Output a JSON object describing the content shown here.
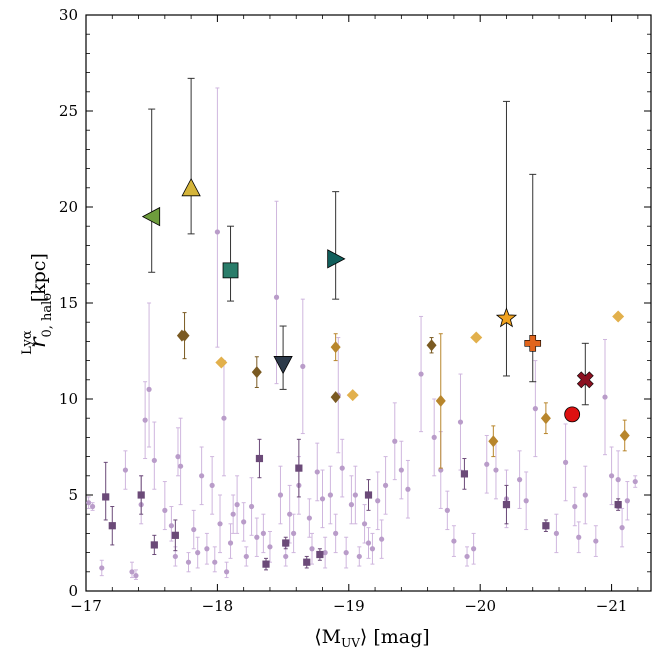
{
  "chart_data": {
    "type": "scatter",
    "xlabel": "⟨M_UV⟩ [mag]",
    "xlabel_parts": {
      "open": "⟨M",
      "sub": "UV",
      "close": "⟩ [mag]"
    },
    "ylabel": "r_{0,halo}^{Lyα} [kpc]",
    "ylabel_parts": {
      "r": "r",
      "sub": "0, halo",
      "sup": "Lyα",
      "unit": " [kpc]"
    },
    "xlim": [
      -17,
      -21.3
    ],
    "ylim": [
      0,
      30
    ],
    "xticks": [
      -17,
      -18,
      -19,
      -20,
      -21
    ],
    "xtick_labels": [
      "−17",
      "−18",
      "−19",
      "−20",
      "−21"
    ],
    "yticks": [
      0,
      5,
      10,
      15,
      20,
      25,
      30
    ],
    "ytick_labels": [
      "0",
      "5",
      "10",
      "15",
      "20",
      "25",
      "30"
    ],
    "grid": false,
    "series": [
      {
        "name": "individual-halos",
        "marker": "circle-small",
        "color": "#b99cc9",
        "points": [
          {
            "x": -17.02,
            "y": 4.6,
            "lo": 0.3,
            "hi": 0.3
          },
          {
            "x": -17.05,
            "y": 4.4,
            "lo": 0.2,
            "hi": 0.2
          },
          {
            "x": -17.12,
            "y": 1.2,
            "lo": 0.4,
            "hi": 0.4
          },
          {
            "x": -17.3,
            "y": 6.3,
            "lo": 1.0,
            "hi": 1.0
          },
          {
            "x": -17.35,
            "y": 1.0,
            "lo": 0.3,
            "hi": 0.5
          },
          {
            "x": -17.38,
            "y": 0.8,
            "lo": 0.2,
            "hi": 0.3
          },
          {
            "x": -17.42,
            "y": 4.5,
            "lo": 1.0,
            "hi": 1.5
          },
          {
            "x": -17.45,
            "y": 8.9,
            "lo": 2.0,
            "hi": 2.0
          },
          {
            "x": -17.48,
            "y": 10.5,
            "lo": 3.0,
            "hi": 4.5
          },
          {
            "x": -17.52,
            "y": 6.8,
            "lo": 1.5,
            "hi": 2.0
          },
          {
            "x": -17.6,
            "y": 4.2,
            "lo": 1.0,
            "hi": 1.5
          },
          {
            "x": -17.65,
            "y": 3.4,
            "lo": 0.8,
            "hi": 1.0
          },
          {
            "x": -17.68,
            "y": 1.8,
            "lo": 0.5,
            "hi": 0.5
          },
          {
            "x": -17.7,
            "y": 7.0,
            "lo": 1.0,
            "hi": 1.5
          },
          {
            "x": -17.72,
            "y": 6.5,
            "lo": 2.0,
            "hi": 2.5
          },
          {
            "x": -17.78,
            "y": 1.5,
            "lo": 0.5,
            "hi": 0.5
          },
          {
            "x": -17.82,
            "y": 3.2,
            "lo": 1.0,
            "hi": 1.0
          },
          {
            "x": -17.85,
            "y": 2.0,
            "lo": 0.8,
            "hi": 0.8
          },
          {
            "x": -17.88,
            "y": 6.0,
            "lo": 1.5,
            "hi": 1.5
          },
          {
            "x": -17.92,
            "y": 2.2,
            "lo": 0.8,
            "hi": 0.8
          },
          {
            "x": -17.96,
            "y": 5.5,
            "lo": 1.5,
            "hi": 1.5
          },
          {
            "x": -17.98,
            "y": 1.5,
            "lo": 0.5,
            "hi": 0.8
          },
          {
            "x": -18.0,
            "y": 18.7,
            "lo": 6.0,
            "hi": 7.5
          },
          {
            "x": -18.02,
            "y": 3.5,
            "lo": 1.5,
            "hi": 1.5
          },
          {
            "x": -18.05,
            "y": 9.0,
            "lo": 3.0,
            "hi": 3.0
          },
          {
            "x": -18.07,
            "y": 1.0,
            "lo": 0.3,
            "hi": 0.5
          },
          {
            "x": -18.1,
            "y": 2.5,
            "lo": 0.8,
            "hi": 1.0
          },
          {
            "x": -18.12,
            "y": 4.0,
            "lo": 1.0,
            "hi": 1.0
          },
          {
            "x": -18.15,
            "y": 4.5,
            "lo": 1.5,
            "hi": 1.5
          },
          {
            "x": -18.2,
            "y": 3.6,
            "lo": 1.0,
            "hi": 1.0
          },
          {
            "x": -18.22,
            "y": 1.8,
            "lo": 0.5,
            "hi": 0.5
          },
          {
            "x": -18.26,
            "y": 4.4,
            "lo": 1.5,
            "hi": 1.5
          },
          {
            "x": -18.3,
            "y": 2.8,
            "lo": 1.0,
            "hi": 1.0
          },
          {
            "x": -18.35,
            "y": 3.0,
            "lo": 1.0,
            "hi": 1.0
          },
          {
            "x": -18.4,
            "y": 2.3,
            "lo": 0.8,
            "hi": 0.8
          },
          {
            "x": -18.45,
            "y": 15.3,
            "lo": 4.5,
            "hi": 5.0
          },
          {
            "x": -18.48,
            "y": 5.0,
            "lo": 1.5,
            "hi": 1.5
          },
          {
            "x": -18.52,
            "y": 1.8,
            "lo": 0.5,
            "hi": 0.5
          },
          {
            "x": -18.55,
            "y": 4.0,
            "lo": 1.5,
            "hi": 1.5
          },
          {
            "x": -18.58,
            "y": 3.0,
            "lo": 1.0,
            "hi": 1.0
          },
          {
            "x": -18.62,
            "y": 5.5,
            "lo": 1.5,
            "hi": 1.5
          },
          {
            "x": -18.65,
            "y": 11.7,
            "lo": 3.5,
            "hi": 3.5
          },
          {
            "x": -18.7,
            "y": 3.8,
            "lo": 1.0,
            "hi": 1.0
          },
          {
            "x": -18.72,
            "y": 2.2,
            "lo": 0.8,
            "hi": 0.8
          },
          {
            "x": -18.76,
            "y": 6.2,
            "lo": 1.5,
            "hi": 1.5
          },
          {
            "x": -18.8,
            "y": 4.8,
            "lo": 1.5,
            "hi": 1.5
          },
          {
            "x": -18.82,
            "y": 2.0,
            "lo": 0.8,
            "hi": 0.8
          },
          {
            "x": -18.86,
            "y": 5.0,
            "lo": 1.5,
            "hi": 1.5
          },
          {
            "x": -18.9,
            "y": 3.0,
            "lo": 1.0,
            "hi": 1.0
          },
          {
            "x": -18.92,
            "y": 10.2,
            "lo": 3.0,
            "hi": 3.0
          },
          {
            "x": -18.95,
            "y": 6.4,
            "lo": 1.5,
            "hi": 1.5
          },
          {
            "x": -18.98,
            "y": 2.0,
            "lo": 0.8,
            "hi": 0.8
          },
          {
            "x": -19.02,
            "y": 4.5,
            "lo": 1.0,
            "hi": 1.5
          },
          {
            "x": -19.05,
            "y": 5.0,
            "lo": 1.5,
            "hi": 1.5
          },
          {
            "x": -19.08,
            "y": 1.8,
            "lo": 0.5,
            "hi": 0.5
          },
          {
            "x": -19.12,
            "y": 3.5,
            "lo": 1.0,
            "hi": 1.0
          },
          {
            "x": -19.15,
            "y": 2.5,
            "lo": 0.8,
            "hi": 0.8
          },
          {
            "x": -19.18,
            "y": 2.2,
            "lo": 0.8,
            "hi": 0.8
          },
          {
            "x": -19.22,
            "y": 4.7,
            "lo": 1.5,
            "hi": 1.5
          },
          {
            "x": -19.25,
            "y": 2.7,
            "lo": 1.0,
            "hi": 1.0
          },
          {
            "x": -19.28,
            "y": 5.5,
            "lo": 1.5,
            "hi": 1.5
          },
          {
            "x": -19.35,
            "y": 7.8,
            "lo": 2.0,
            "hi": 2.0
          },
          {
            "x": -19.4,
            "y": 6.3,
            "lo": 1.5,
            "hi": 1.5
          },
          {
            "x": -19.45,
            "y": 5.3,
            "lo": 1.5,
            "hi": 1.5
          },
          {
            "x": -19.55,
            "y": 11.3,
            "lo": 3.0,
            "hi": 3.0
          },
          {
            "x": -19.65,
            "y": 8.0,
            "lo": 2.0,
            "hi": 2.0
          },
          {
            "x": -19.7,
            "y": 6.3,
            "lo": 2.0,
            "hi": 2.0
          },
          {
            "x": -19.75,
            "y": 4.2,
            "lo": 1.0,
            "hi": 1.0
          },
          {
            "x": -19.8,
            "y": 2.6,
            "lo": 0.8,
            "hi": 0.8
          },
          {
            "x": -19.85,
            "y": 8.8,
            "lo": 2.5,
            "hi": 2.5
          },
          {
            "x": -19.9,
            "y": 1.8,
            "lo": 0.5,
            "hi": 0.5
          },
          {
            "x": -19.95,
            "y": 2.2,
            "lo": 0.8,
            "hi": 0.8
          },
          {
            "x": -20.05,
            "y": 6.6,
            "lo": 1.5,
            "hi": 1.5
          },
          {
            "x": -20.12,
            "y": 6.3,
            "lo": 1.5,
            "hi": 1.5
          },
          {
            "x": -20.2,
            "y": 4.8,
            "lo": 1.5,
            "hi": 1.5
          },
          {
            "x": -20.3,
            "y": 5.8,
            "lo": 1.5,
            "hi": 1.5
          },
          {
            "x": -20.35,
            "y": 4.7,
            "lo": 1.5,
            "hi": 1.5
          },
          {
            "x": -20.42,
            "y": 9.5,
            "lo": 2.5,
            "hi": 2.5
          },
          {
            "x": -20.58,
            "y": 3.0,
            "lo": 1.0,
            "hi": 1.0
          },
          {
            "x": -20.65,
            "y": 6.7,
            "lo": 2.0,
            "hi": 2.0
          },
          {
            "x": -20.72,
            "y": 4.4,
            "lo": 1.0,
            "hi": 1.0
          },
          {
            "x": -20.75,
            "y": 2.8,
            "lo": 0.8,
            "hi": 0.8
          },
          {
            "x": -20.8,
            "y": 5.0,
            "lo": 1.5,
            "hi": 1.5
          },
          {
            "x": -20.88,
            "y": 2.6,
            "lo": 0.8,
            "hi": 0.8
          },
          {
            "x": -20.95,
            "y": 10.1,
            "lo": 3.0,
            "hi": 3.0
          },
          {
            "x": -21.0,
            "y": 6.0,
            "lo": 1.5,
            "hi": 1.5
          },
          {
            "x": -21.05,
            "y": 5.8,
            "lo": 1.5,
            "hi": 1.5
          },
          {
            "x": -21.08,
            "y": 3.3,
            "lo": 1.0,
            "hi": 1.0
          },
          {
            "x": -21.12,
            "y": 4.7,
            "lo": 1.0,
            "hi": 1.0
          },
          {
            "x": -21.18,
            "y": 5.7,
            "lo": 0.3,
            "hi": 0.3
          }
        ]
      },
      {
        "name": "stacked-bins",
        "marker": "square-small",
        "color": "#6b4a78",
        "points": [
          {
            "x": -17.15,
            "y": 4.9,
            "lo": 1.2,
            "hi": 1.8
          },
          {
            "x": -17.2,
            "y": 3.4,
            "lo": 1.0,
            "hi": 1.0
          },
          {
            "x": -17.42,
            "y": 5.0,
            "lo": 1.0,
            "hi": 1.0
          },
          {
            "x": -17.52,
            "y": 2.4,
            "lo": 0.5,
            "hi": 0.5
          },
          {
            "x": -17.68,
            "y": 2.9,
            "lo": 0.8,
            "hi": 0.8
          },
          {
            "x": -18.32,
            "y": 6.9,
            "lo": 1.0,
            "hi": 1.0
          },
          {
            "x": -18.37,
            "y": 1.4,
            "lo": 0.3,
            "hi": 0.3
          },
          {
            "x": -18.52,
            "y": 2.5,
            "lo": 0.3,
            "hi": 0.3
          },
          {
            "x": -18.62,
            "y": 6.4,
            "lo": 1.5,
            "hi": 1.5
          },
          {
            "x": -18.68,
            "y": 1.5,
            "lo": 0.3,
            "hi": 0.3
          },
          {
            "x": -18.78,
            "y": 1.9,
            "lo": 0.3,
            "hi": 0.3
          },
          {
            "x": -19.15,
            "y": 5.0,
            "lo": 0.8,
            "hi": 0.8
          },
          {
            "x": -19.88,
            "y": 6.1,
            "lo": 0.8,
            "hi": 0.8
          },
          {
            "x": -20.2,
            "y": 4.5,
            "lo": 1.0,
            "hi": 1.0
          },
          {
            "x": -20.5,
            "y": 3.4,
            "lo": 0.3,
            "hi": 0.3
          },
          {
            "x": -21.05,
            "y": 4.5,
            "lo": 0.3,
            "hi": 0.3
          }
        ]
      },
      {
        "name": "diamond-dark",
        "marker": "diamond-thin",
        "color": "#7a5a22",
        "points": [
          {
            "x": -17.73,
            "y": 13.3,
            "lo": 0.0,
            "hi": 0.0
          },
          {
            "x": -17.75,
            "y": 13.3,
            "lo": 1.2,
            "hi": 1.2
          },
          {
            "x": -18.3,
            "y": 11.4,
            "lo": 0.8,
            "hi": 0.8
          },
          {
            "x": -18.9,
            "y": 10.1,
            "lo": 0.0,
            "hi": 0.0
          },
          {
            "x": -19.63,
            "y": 12.8,
            "lo": 0.4,
            "hi": 0.4
          }
        ]
      },
      {
        "name": "diamond-medium",
        "marker": "diamond-thin",
        "color": "#b8862c",
        "points": [
          {
            "x": -18.9,
            "y": 12.7,
            "lo": 0.7,
            "hi": 0.7
          },
          {
            "x": -19.7,
            "y": 9.9,
            "lo": 3.5,
            "hi": 3.5
          },
          {
            "x": -20.1,
            "y": 7.8,
            "lo": 0.8,
            "hi": 0.8
          },
          {
            "x": -20.5,
            "y": 9.0,
            "lo": 0.8,
            "hi": 0.8
          },
          {
            "x": -21.1,
            "y": 8.1,
            "lo": 0.8,
            "hi": 0.8
          }
        ]
      },
      {
        "name": "diamond-light",
        "marker": "diamond",
        "color": "#e2b04c",
        "points": [
          {
            "x": -18.03,
            "y": 11.9,
            "lo": 0,
            "hi": 0
          },
          {
            "x": -19.03,
            "y": 10.2,
            "lo": 0,
            "hi": 0
          },
          {
            "x": -19.97,
            "y": 13.2,
            "lo": 0,
            "hi": 0
          },
          {
            "x": -21.05,
            "y": 14.3,
            "lo": 0,
            "hi": 0
          }
        ]
      },
      {
        "name": "left-triangle",
        "marker": "triangle-left",
        "color": "#6e9c3c",
        "points": [
          {
            "x": -17.5,
            "y": 19.5,
            "lo": 2.9,
            "hi": 5.6
          }
        ]
      },
      {
        "name": "up-triangle",
        "marker": "triangle-up",
        "color": "#d4b43a",
        "points": [
          {
            "x": -17.8,
            "y": 21.0,
            "lo": 2.4,
            "hi": 5.7
          }
        ]
      },
      {
        "name": "big-square",
        "marker": "square",
        "color": "#2a7d6a",
        "points": [
          {
            "x": -18.1,
            "y": 16.7,
            "lo": 1.6,
            "hi": 2.3
          }
        ]
      },
      {
        "name": "down-triangle",
        "marker": "triangle-down",
        "color": "#2c3a4a",
        "points": [
          {
            "x": -18.5,
            "y": 11.8,
            "lo": 1.3,
            "hi": 2.0
          }
        ]
      },
      {
        "name": "right-triangle",
        "marker": "triangle-right",
        "color": "#115f5c",
        "points": [
          {
            "x": -18.9,
            "y": 17.3,
            "lo": 2.1,
            "hi": 3.5
          }
        ]
      },
      {
        "name": "star",
        "marker": "star",
        "color": "#f0a21f",
        "points": [
          {
            "x": -20.2,
            "y": 14.2,
            "lo": 3.0,
            "hi": 11.3
          }
        ]
      },
      {
        "name": "plus",
        "marker": "plus",
        "color": "#e0641c",
        "points": [
          {
            "x": -20.4,
            "y": 12.9,
            "lo": 2.0,
            "hi": 8.8
          }
        ]
      },
      {
        "name": "cross",
        "marker": "cross",
        "color": "#8a1020",
        "points": [
          {
            "x": -20.8,
            "y": 11.0,
            "lo": 1.3,
            "hi": 1.9
          }
        ]
      },
      {
        "name": "big-circle",
        "marker": "circle",
        "color": "#dd1111",
        "points": [
          {
            "x": -20.7,
            "y": 9.2,
            "lo": 0,
            "hi": 0
          }
        ]
      }
    ]
  }
}
